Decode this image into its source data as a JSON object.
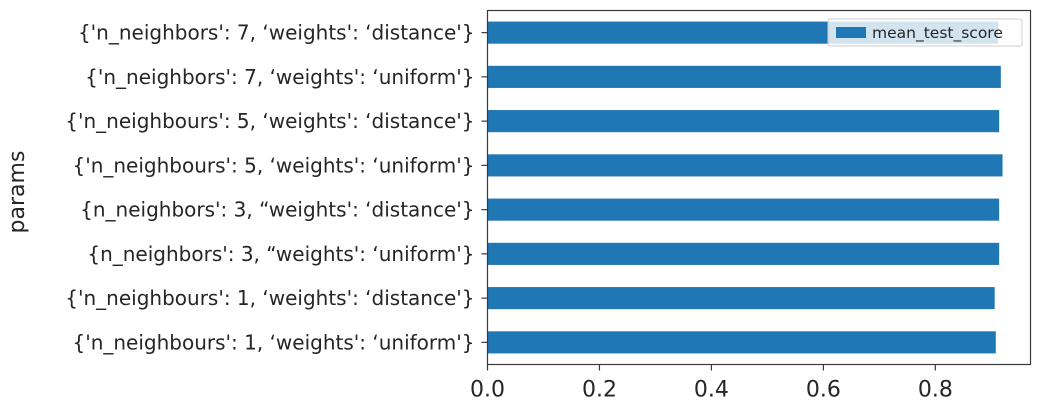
{
  "chart_data": {
    "type": "bar",
    "orientation": "horizontal",
    "title": "",
    "xlabel": "",
    "ylabel": "params",
    "xlim": [
      0,
      0.97
    ],
    "xticks": [
      "0.0",
      "0.2",
      "0.4",
      "0.6",
      "0.8"
    ],
    "categories": [
      "{'n_neighbors': 7, ‘weights': ‘distance'}",
      "{'n_neighbors': 7, ‘weights': ‘uniform'}",
      "{'n_neighbours': 5, ‘weights': ‘distance'}",
      "{'n_neighbours': 5, ‘weights': ‘uniform'}",
      "{n_neighbors': 3, “weights': ‘distance'}",
      "{n_neighbors': 3, “weights': ‘uniform'}",
      "{'n_neighbours': 1, ‘weights': ‘distance'}",
      "{'n_neighbours': 1, ‘weights': ‘uniform'}"
    ],
    "series": [
      {
        "name": "mean_test_score",
        "color": "#1f77b4",
        "values": [
          0.912,
          0.917,
          0.914,
          0.92,
          0.914,
          0.914,
          0.906,
          0.908
        ]
      }
    ],
    "legend": "top-right",
    "grid": false
  }
}
